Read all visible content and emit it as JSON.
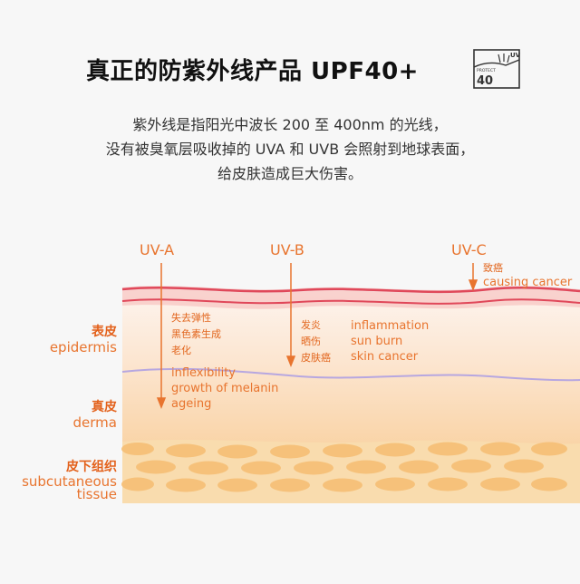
{
  "header": {
    "title": "真正的防紫外线产品 UPF40+",
    "badge": {
      "icon": "upf-sun-shield-icon",
      "uv": "UV",
      "protect": "PROTECT",
      "value": "40"
    }
  },
  "description": {
    "lines": [
      "紫外线是指阳光中波长 200 至 400nm 的光线，",
      "没有被臭氧层吸收掉的 UVA 和 UVB 会照射到地球表面，",
      "给皮肤造成巨大伤害。"
    ]
  },
  "diagram": {
    "uva": {
      "label": "UV-A",
      "effects_cn": [
        "失去弹性",
        "黑色素生成",
        "老化"
      ],
      "effects_en": [
        "inflexibility",
        "growth of melanin",
        "ageing"
      ]
    },
    "uvb": {
      "label": "UV-B",
      "effects_cn": [
        "发炎",
        "晒伤",
        "皮肤癌"
      ],
      "effects_en": [
        "inflammation",
        "sun burn",
        "skin cancer"
      ]
    },
    "uvc": {
      "label": "UV-C",
      "effect_cn": "致癌",
      "effect_en": "causing cancer"
    },
    "layers": {
      "epidermis": {
        "cn": "表皮",
        "en": "epidermis"
      },
      "derma": {
        "cn": "真皮",
        "en": "derma"
      },
      "subcutaneous": {
        "cn": "皮下组织",
        "en_lines": [
          "subcutaneous",
          "tissue"
        ]
      }
    },
    "colors": {
      "accent": "#e8742e",
      "skin_line": "#e0485a",
      "derma_line": "#b7a7e0",
      "fat_cell": "#f6c17a"
    }
  }
}
